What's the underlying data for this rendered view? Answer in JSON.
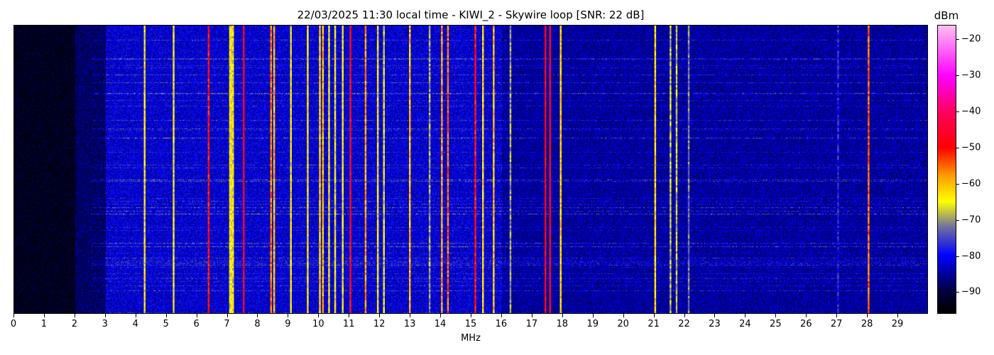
{
  "chart_data": {
    "type": "heatmap",
    "title": "22/03/2025 11:30 local time - KIWI_2 - Skywire loop [SNR: 22 dB]",
    "xlabel": "MHz",
    "xlim": [
      0,
      30
    ],
    "x_ticks": [
      "0",
      "1",
      "2",
      "3",
      "4",
      "5",
      "6",
      "7",
      "8",
      "9",
      "10",
      "11",
      "12",
      "13",
      "14",
      "15",
      "16",
      "17",
      "18",
      "19",
      "20",
      "21",
      "22",
      "23",
      "24",
      "25",
      "26",
      "27",
      "28",
      "29"
    ],
    "colorbar": {
      "label": "dBm",
      "range": [
        -96,
        -16
      ],
      "ticks": [
        "-20",
        "-30",
        "-40",
        "-50",
        "-60",
        "-70",
        "-80",
        "-90"
      ],
      "colormap": [
        {
          "v": -96,
          "c": "#000000"
        },
        {
          "v": -90,
          "c": "#00003c"
        },
        {
          "v": -80,
          "c": "#0000ff"
        },
        {
          "v": -72,
          "c": "#7070a0"
        },
        {
          "v": -65,
          "c": "#ffff00"
        },
        {
          "v": -58,
          "c": "#ffa000"
        },
        {
          "v": -50,
          "c": "#ff0000"
        },
        {
          "v": -40,
          "c": "#ff0060"
        },
        {
          "v": -30,
          "c": "#ff00ff"
        },
        {
          "v": -16,
          "c": "#ffc0f0"
        }
      ]
    },
    "noise_floor": [
      {
        "from": 0,
        "to": 2,
        "dbm": -93
      },
      {
        "from": 2,
        "to": 3,
        "dbm": -88
      },
      {
        "from": 3,
        "to": 16,
        "dbm": -82
      },
      {
        "from": 16,
        "to": 30,
        "dbm": -85
      }
    ],
    "signals": [
      {
        "mhz": 4.25,
        "dbm": -65
      },
      {
        "mhz": 5.2,
        "dbm": -65
      },
      {
        "mhz": 6.35,
        "dbm": -50
      },
      {
        "mhz": 7.05,
        "dbm": -65
      },
      {
        "mhz": 7.1,
        "dbm": -63
      },
      {
        "mhz": 7.15,
        "dbm": -66
      },
      {
        "mhz": 7.5,
        "dbm": -46
      },
      {
        "mhz": 8.4,
        "dbm": -56
      },
      {
        "mhz": 8.5,
        "dbm": -60
      },
      {
        "mhz": 9.05,
        "dbm": -65
      },
      {
        "mhz": 9.6,
        "dbm": -64
      },
      {
        "mhz": 10.0,
        "dbm": -62
      },
      {
        "mhz": 10.1,
        "dbm": -60
      },
      {
        "mhz": 10.3,
        "dbm": -65
      },
      {
        "mhz": 10.5,
        "dbm": -65
      },
      {
        "mhz": 10.75,
        "dbm": -65
      },
      {
        "mhz": 11.0,
        "dbm": -48
      },
      {
        "mhz": 11.5,
        "dbm": -58
      },
      {
        "mhz": 11.9,
        "dbm": -65
      },
      {
        "mhz": 12.1,
        "dbm": -66
      },
      {
        "mhz": 12.95,
        "dbm": -60
      },
      {
        "mhz": 13.6,
        "dbm": -70
      },
      {
        "mhz": 14.0,
        "dbm": -58
      },
      {
        "mhz": 14.2,
        "dbm": -55
      },
      {
        "mhz": 15.1,
        "dbm": -50
      },
      {
        "mhz": 15.35,
        "dbm": -62
      },
      {
        "mhz": 15.7,
        "dbm": -60
      },
      {
        "mhz": 16.25,
        "dbm": -70
      },
      {
        "mhz": 17.4,
        "dbm": -48
      },
      {
        "mhz": 17.55,
        "dbm": -47
      },
      {
        "mhz": 17.9,
        "dbm": -62
      },
      {
        "mhz": 21.0,
        "dbm": -62
      },
      {
        "mhz": 21.5,
        "dbm": -68
      },
      {
        "mhz": 21.7,
        "dbm": -68
      },
      {
        "mhz": 22.1,
        "dbm": -72
      },
      {
        "mhz": 27.0,
        "dbm": -78
      },
      {
        "mhz": 28.0,
        "dbm": -55
      }
    ]
  }
}
